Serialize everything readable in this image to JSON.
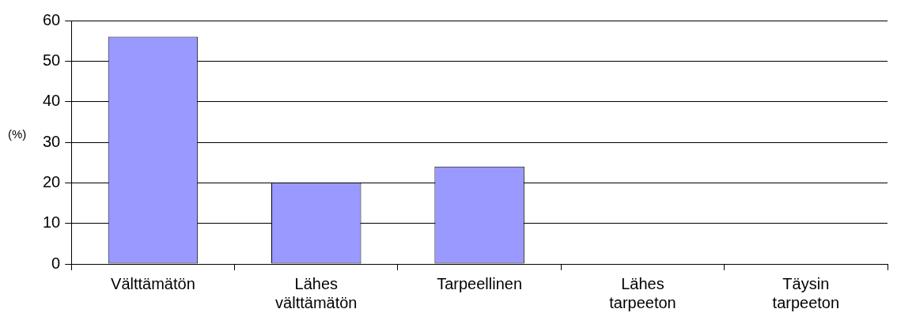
{
  "chart_data": {
    "type": "bar",
    "ylabel": "(%)",
    "categories": [
      "Välttämätön",
      "Lähes välttämätön",
      "Tarpeellinen",
      "Lähes tarpeeton",
      "Täysin tarpeeton"
    ],
    "values": [
      56,
      20,
      24,
      0,
      0
    ],
    "color": "#9999ff",
    "ylim": [
      0,
      60
    ],
    "yticks": [
      0,
      10,
      20,
      30,
      40,
      50,
      60
    ],
    "grid": "y",
    "legend": false
  }
}
